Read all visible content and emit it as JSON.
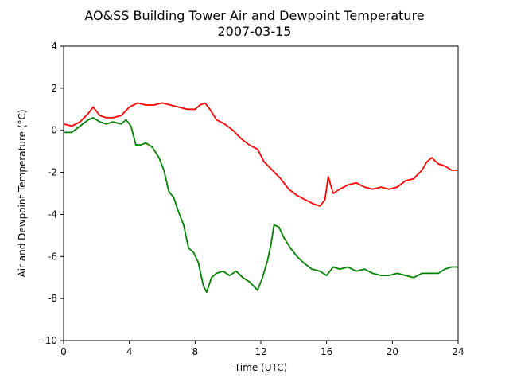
{
  "chart_data": {
    "type": "line",
    "title": "AO&SS Building Tower Air and Dewpoint Temperature",
    "subtitle": "2007-03-15",
    "xlabel": "Time (UTC)",
    "ylabel": "Air and Dewpoint Temperature (°C)",
    "xlim": [
      0,
      24
    ],
    "ylim": [
      -10,
      4
    ],
    "xticks": [
      0,
      4,
      8,
      12,
      16,
      20,
      24
    ],
    "yticks": [
      -10,
      -8,
      -6,
      -4,
      -2,
      0,
      2,
      4
    ],
    "grid": false,
    "legend": "none",
    "series": [
      {
        "color": "#ff0000",
        "x": [
          0,
          0.5,
          1,
          1.5,
          1.8,
          2.2,
          2.6,
          3,
          3.5,
          4,
          4.5,
          5,
          5.5,
          6,
          6.5,
          7,
          7.5,
          8,
          8.3,
          8.6,
          8.9,
          9.3,
          9.8,
          10.3,
          10.8,
          11.3,
          11.8,
          12.2,
          12.7,
          13.2,
          13.7,
          14.2,
          14.7,
          15.2,
          15.6,
          15.9,
          16.1,
          16.4,
          16.8,
          17.3,
          17.8,
          18.3,
          18.8,
          19.3,
          19.8,
          20.3,
          20.8,
          21.3,
          21.8,
          22.1,
          22.4,
          22.8,
          23.2,
          23.6,
          24
        ],
        "values": [
          0.3,
          0.2,
          0.4,
          0.8,
          1.1,
          0.7,
          0.6,
          0.6,
          0.7,
          1.1,
          1.3,
          1.2,
          1.2,
          1.3,
          1.2,
          1.1,
          1.0,
          1.0,
          1.2,
          1.3,
          1.0,
          0.5,
          0.3,
          0.0,
          -0.4,
          -0.7,
          -0.9,
          -1.5,
          -1.9,
          -2.3,
          -2.8,
          -3.1,
          -3.3,
          -3.5,
          -3.6,
          -3.3,
          -2.2,
          -3.0,
          -2.8,
          -2.6,
          -2.5,
          -2.7,
          -2.8,
          -2.7,
          -2.8,
          -2.7,
          -2.4,
          -2.3,
          -1.9,
          -1.5,
          -1.3,
          -1.6,
          -1.7,
          -1.9,
          -1.9
        ]
      },
      {
        "color": "#008000",
        "x": [
          0,
          0.5,
          1,
          1.5,
          1.8,
          2.2,
          2.6,
          3,
          3.5,
          3.8,
          4.1,
          4.4,
          4.7,
          5,
          5.4,
          5.8,
          6.1,
          6.4,
          6.7,
          7,
          7.3,
          7.6,
          7.9,
          8.2,
          8.5,
          8.7,
          9,
          9.3,
          9.7,
          10.1,
          10.5,
          10.9,
          11.3,
          11.8,
          12.1,
          12.4,
          12.6,
          12.8,
          13.1,
          13.4,
          13.8,
          14.2,
          14.6,
          15.1,
          15.6,
          16,
          16.4,
          16.8,
          17.3,
          17.8,
          18.3,
          18.8,
          19.3,
          19.8,
          20.3,
          20.8,
          21.3,
          21.8,
          22.3,
          22.8,
          23.2,
          23.6,
          24
        ],
        "values": [
          -0.1,
          -0.1,
          0.2,
          0.5,
          0.6,
          0.4,
          0.3,
          0.4,
          0.3,
          0.5,
          0.2,
          -0.7,
          -0.7,
          -0.6,
          -0.8,
          -1.3,
          -1.9,
          -2.9,
          -3.2,
          -3.9,
          -4.5,
          -5.6,
          -5.8,
          -6.3,
          -7.4,
          -7.7,
          -7.0,
          -6.8,
          -6.7,
          -6.9,
          -6.7,
          -7.0,
          -7.2,
          -7.6,
          -7.0,
          -6.2,
          -5.5,
          -4.5,
          -4.6,
          -5.1,
          -5.6,
          -6.0,
          -6.3,
          -6.6,
          -6.7,
          -6.9,
          -6.5,
          -6.6,
          -6.5,
          -6.7,
          -6.6,
          -6.8,
          -6.9,
          -6.9,
          -6.8,
          -6.9,
          -7.0,
          -6.8,
          -6.8,
          -6.8,
          -6.6,
          -6.5,
          -6.5
        ]
      }
    ]
  }
}
